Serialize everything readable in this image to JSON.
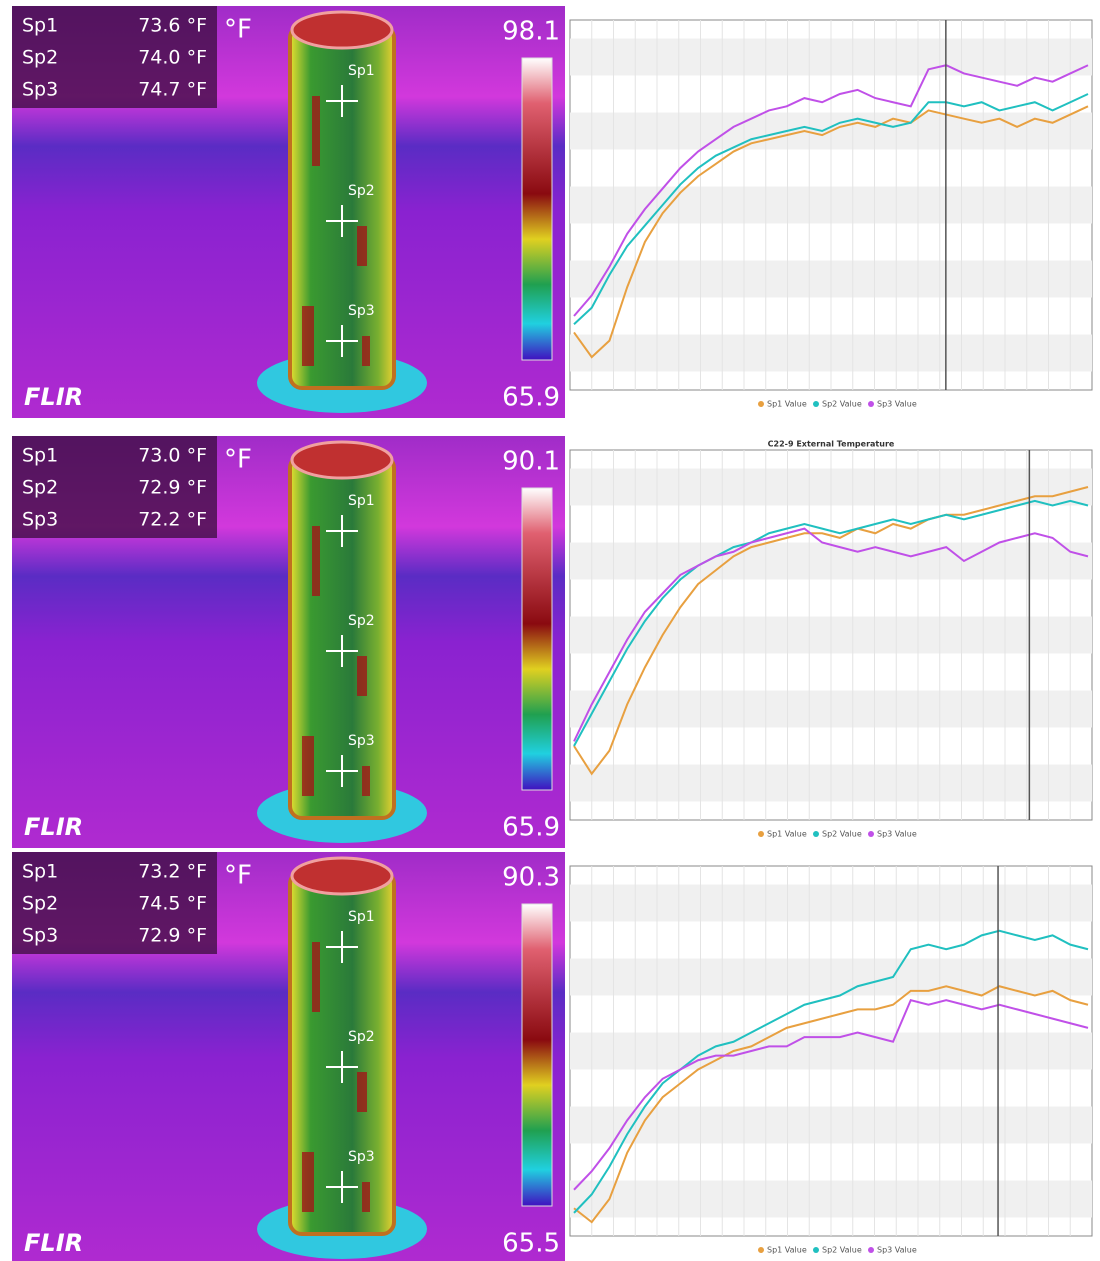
{
  "thermal_images": [
    {
      "spots": [
        {
          "label": "Sp1",
          "reading": "73.6 °F"
        },
        {
          "label": "Sp2",
          "reading": "74.0 °F"
        },
        {
          "label": "Sp3",
          "reading": "74.7 °F"
        }
      ],
      "unit": "°F",
      "scale_max": "98.1",
      "scale_min": "65.9",
      "brand": "FLIR"
    },
    {
      "spots": [
        {
          "label": "Sp1",
          "reading": "73.0 °F"
        },
        {
          "label": "Sp2",
          "reading": "72.9 °F"
        },
        {
          "label": "Sp3",
          "reading": "72.2 °F"
        }
      ],
      "unit": "°F",
      "scale_max": "90.1",
      "scale_min": "65.9",
      "brand": "FLIR"
    },
    {
      "spots": [
        {
          "label": "Sp1",
          "reading": "73.2 °F"
        },
        {
          "label": "Sp2",
          "reading": "74.5 °F"
        },
        {
          "label": "Sp3",
          "reading": "72.9 °F"
        }
      ],
      "unit": "°F",
      "scale_max": "90.3",
      "scale_min": "65.5",
      "brand": "FLIR"
    }
  ],
  "chart_data": [
    {
      "type": "line",
      "ylim": [
        67,
        76
      ],
      "series": [
        {
          "name": "Sp1 Value",
          "color": "#e8a040",
          "values": [
            68.4,
            67.8,
            68.2,
            69.5,
            70.6,
            71.3,
            71.8,
            72.2,
            72.5,
            72.8,
            73.0,
            73.1,
            73.2,
            73.3,
            73.2,
            73.4,
            73.5,
            73.4,
            73.6,
            73.5,
            73.8,
            73.7,
            73.6,
            73.5,
            73.6,
            73.4,
            73.6,
            73.5,
            73.7,
            73.9
          ]
        },
        {
          "name": "Sp2 Value",
          "color": "#20c0c0",
          "values": [
            68.6,
            69.0,
            69.8,
            70.5,
            71.0,
            71.5,
            72.0,
            72.4,
            72.7,
            72.9,
            73.1,
            73.2,
            73.3,
            73.4,
            73.3,
            73.5,
            73.6,
            73.5,
            73.4,
            73.5,
            74.0,
            74.0,
            73.9,
            74.0,
            73.8,
            73.9,
            74.0,
            73.8,
            74.0,
            74.2
          ]
        },
        {
          "name": "Sp3 Value",
          "color": "#c050e8",
          "values": [
            68.8,
            69.3,
            70.0,
            70.8,
            71.4,
            71.9,
            72.4,
            72.8,
            73.1,
            73.4,
            73.6,
            73.8,
            73.9,
            74.1,
            74.0,
            74.2,
            74.3,
            74.1,
            74.0,
            73.9,
            74.8,
            74.9,
            74.7,
            74.6,
            74.5,
            74.4,
            74.6,
            74.5,
            74.7,
            74.9
          ]
        }
      ]
    },
    {
      "type": "line",
      "title": "C22-9 External Temperature",
      "ylim": [
        66,
        74
      ],
      "series": [
        {
          "name": "Sp1 Value",
          "color": "#e8a040",
          "values": [
            67.6,
            67.0,
            67.5,
            68.5,
            69.3,
            70.0,
            70.6,
            71.1,
            71.4,
            71.7,
            71.9,
            72.0,
            72.1,
            72.2,
            72.2,
            72.1,
            72.3,
            72.2,
            72.4,
            72.3,
            72.5,
            72.6,
            72.6,
            72.7,
            72.8,
            72.9,
            73.0,
            73.0,
            73.1,
            73.2
          ]
        },
        {
          "name": "Sp2 Value",
          "color": "#20c0c0",
          "values": [
            67.6,
            68.3,
            69.0,
            69.7,
            70.3,
            70.8,
            71.2,
            71.5,
            71.7,
            71.9,
            72.0,
            72.2,
            72.3,
            72.4,
            72.3,
            72.2,
            72.3,
            72.4,
            72.5,
            72.4,
            72.5,
            72.6,
            72.5,
            72.6,
            72.7,
            72.8,
            72.9,
            72.8,
            72.9,
            72.8
          ]
        },
        {
          "name": "Sp3 Value",
          "color": "#c050e8",
          "values": [
            67.7,
            68.5,
            69.2,
            69.9,
            70.5,
            70.9,
            71.3,
            71.5,
            71.7,
            71.8,
            72.0,
            72.1,
            72.2,
            72.3,
            72.0,
            71.9,
            71.8,
            71.9,
            71.8,
            71.7,
            71.8,
            71.9,
            71.6,
            71.8,
            72.0,
            72.1,
            72.2,
            72.1,
            71.8,
            71.7
          ]
        }
      ]
    },
    {
      "type": "line",
      "ylim": [
        68,
        76
      ],
      "series": [
        {
          "name": "Sp1 Value",
          "color": "#e8a040",
          "values": [
            68.6,
            68.3,
            68.8,
            69.8,
            70.5,
            71.0,
            71.3,
            71.6,
            71.8,
            72.0,
            72.1,
            72.3,
            72.5,
            72.6,
            72.7,
            72.8,
            72.9,
            72.9,
            73.0,
            73.3,
            73.3,
            73.4,
            73.3,
            73.2,
            73.4,
            73.3,
            73.2,
            73.3,
            73.1,
            73.0
          ]
        },
        {
          "name": "Sp2 Value",
          "color": "#20c0c0",
          "values": [
            68.5,
            68.9,
            69.5,
            70.2,
            70.8,
            71.3,
            71.6,
            71.9,
            72.1,
            72.2,
            72.4,
            72.6,
            72.8,
            73.0,
            73.1,
            73.2,
            73.4,
            73.5,
            73.6,
            74.2,
            74.3,
            74.2,
            74.3,
            74.5,
            74.6,
            74.5,
            74.4,
            74.5,
            74.3,
            74.2
          ]
        },
        {
          "name": "Sp3 Value",
          "color": "#c050e8",
          "values": [
            69.0,
            69.4,
            69.9,
            70.5,
            71.0,
            71.4,
            71.6,
            71.8,
            71.9,
            71.9,
            72.0,
            72.1,
            72.1,
            72.3,
            72.3,
            72.3,
            72.4,
            72.3,
            72.2,
            73.1,
            73.0,
            73.1,
            73.0,
            72.9,
            73.0,
            72.9,
            72.8,
            72.7,
            72.6,
            72.5
          ]
        }
      ]
    }
  ]
}
